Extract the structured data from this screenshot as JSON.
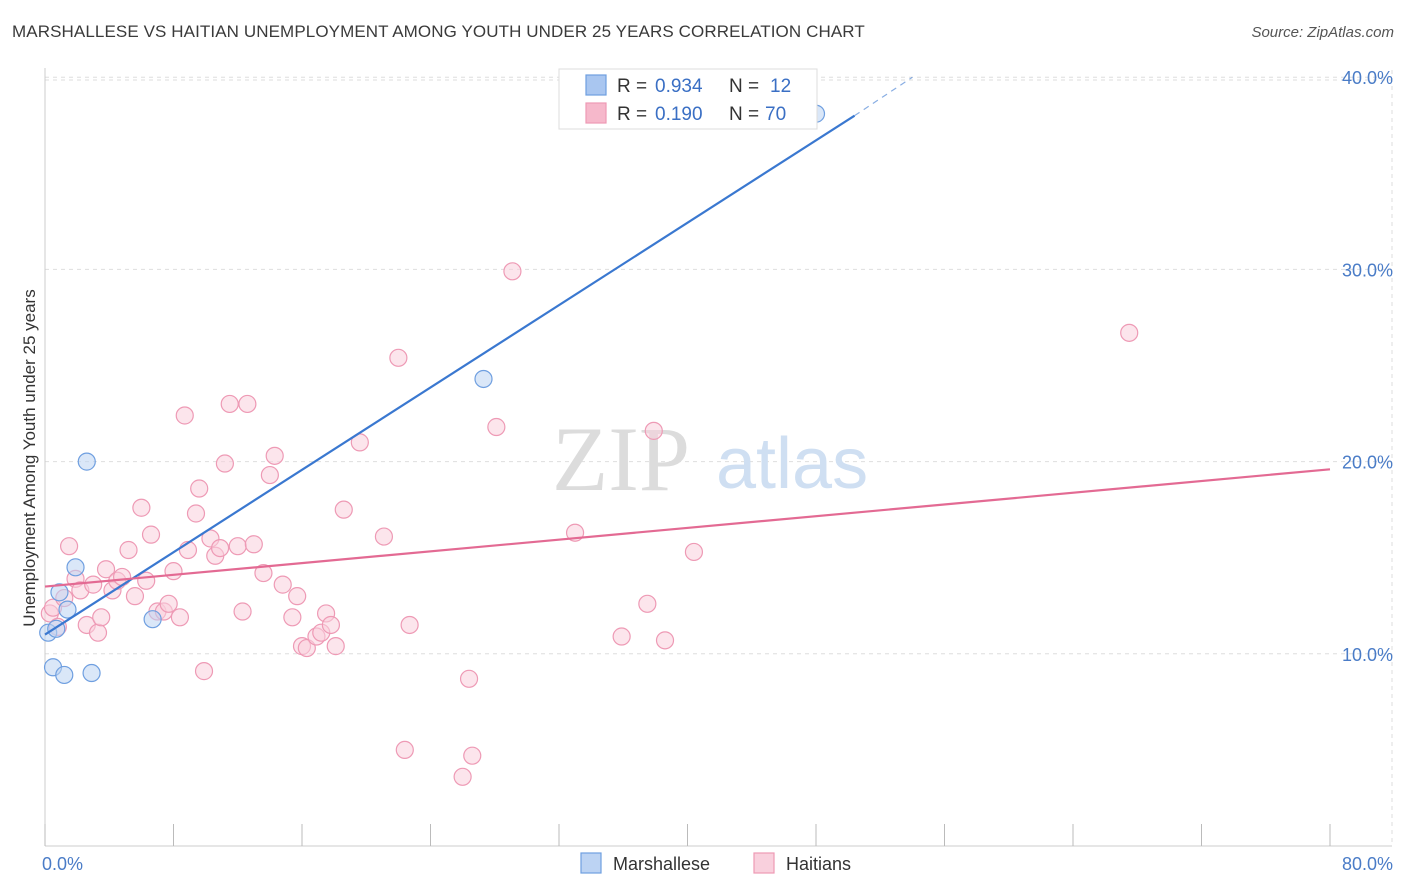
{
  "header": {
    "title": "MARSHALLESE VS HAITIAN UNEMPLOYMENT AMONG YOUTH UNDER 25 YEARS CORRELATION CHART",
    "source": "Source: ZipAtlas.com"
  },
  "watermark": {
    "zip": "ZIP",
    "atlas": "atlas"
  },
  "legend": {
    "rows": [
      {
        "r_label": "R =",
        "r_value": "0.934",
        "n_label": "N =",
        "n_value": "12",
        "color": "#a9c6f0"
      },
      {
        "r_label": "R =",
        "r_value": "0.190",
        "n_label": "N =",
        "n_value": "70",
        "color": "#f6b8cb"
      }
    ]
  },
  "chart_data": {
    "type": "scatter",
    "title": "MARSHALLESE VS HAITIAN UNEMPLOYMENT AMONG YOUTH UNDER 25 YEARS CORRELATION CHART",
    "xlabel": "",
    "ylabel": "Unemployment Among Youth under 25 years",
    "xlim": [
      0,
      80
    ],
    "ylim": [
      0,
      41
    ],
    "x_tick_labels": [
      {
        "value": 0,
        "label": "0.0%"
      },
      {
        "value": 80,
        "label": "80.0%"
      }
    ],
    "y_tick_labels": [
      {
        "value": 10,
        "label": "10.0%"
      },
      {
        "value": 20,
        "label": "20.0%"
      },
      {
        "value": 30,
        "label": "30.0%"
      },
      {
        "value": 40,
        "label": "40.0%"
      }
    ],
    "grid": true,
    "legend_position": "top-center",
    "series": [
      {
        "name": "Marshallese",
        "color": "#6f9fe0",
        "fill": "#bcd3f3",
        "line_color": "#3a78d0",
        "trend": {
          "x0": 0,
          "y0": 11.0,
          "x1": 50.4,
          "y1": 38.0,
          "dash_to_x": 54.0,
          "dash_to_y": 40.0
        },
        "points": [
          [
            0.2,
            11.1
          ],
          [
            0.7,
            11.3
          ],
          [
            0.5,
            9.3
          ],
          [
            1.2,
            8.9
          ],
          [
            0.9,
            13.2
          ],
          [
            1.4,
            12.3
          ],
          [
            1.9,
            14.5
          ],
          [
            2.6,
            20.0
          ],
          [
            2.9,
            9.0
          ],
          [
            6.7,
            11.8
          ],
          [
            27.3,
            24.3
          ],
          [
            48.0,
            38.1
          ]
        ]
      },
      {
        "name": "Haitians",
        "color": "#ee9ab5",
        "fill": "#f9d0dd",
        "line_color": "#e36a93",
        "trend": {
          "x0": 0,
          "y0": 13.5,
          "x1": 80,
          "y1": 19.6
        },
        "points": [
          [
            0.3,
            12.1
          ],
          [
            0.5,
            12.4
          ],
          [
            0.8,
            11.4
          ],
          [
            1.2,
            12.9
          ],
          [
            1.5,
            15.6
          ],
          [
            1.9,
            13.9
          ],
          [
            2.2,
            13.3
          ],
          [
            2.6,
            11.5
          ],
          [
            3.0,
            13.6
          ],
          [
            3.3,
            11.1
          ],
          [
            3.5,
            11.9
          ],
          [
            3.8,
            14.4
          ],
          [
            4.2,
            13.3
          ],
          [
            4.5,
            13.8
          ],
          [
            4.8,
            14.0
          ],
          [
            5.2,
            15.4
          ],
          [
            5.6,
            13.0
          ],
          [
            6.0,
            17.6
          ],
          [
            6.3,
            13.8
          ],
          [
            6.6,
            16.2
          ],
          [
            7.0,
            12.2
          ],
          [
            7.4,
            12.2
          ],
          [
            7.7,
            12.6
          ],
          [
            8.0,
            14.3
          ],
          [
            8.4,
            11.9
          ],
          [
            8.7,
            22.4
          ],
          [
            8.9,
            15.4
          ],
          [
            9.4,
            17.3
          ],
          [
            9.6,
            18.6
          ],
          [
            9.9,
            9.1
          ],
          [
            10.3,
            16.0
          ],
          [
            10.6,
            15.1
          ],
          [
            10.9,
            15.5
          ],
          [
            11.2,
            19.9
          ],
          [
            11.5,
            23.0
          ],
          [
            12.0,
            15.6
          ],
          [
            12.3,
            12.2
          ],
          [
            12.6,
            23.0
          ],
          [
            13.0,
            15.7
          ],
          [
            13.6,
            14.2
          ],
          [
            14.0,
            19.3
          ],
          [
            14.3,
            20.3
          ],
          [
            14.8,
            13.6
          ],
          [
            15.4,
            11.9
          ],
          [
            15.7,
            13.0
          ],
          [
            16.0,
            10.4
          ],
          [
            16.3,
            10.3
          ],
          [
            16.9,
            10.9
          ],
          [
            17.2,
            11.1
          ],
          [
            17.5,
            12.1
          ],
          [
            17.8,
            11.5
          ],
          [
            18.1,
            10.4
          ],
          [
            18.6,
            17.5
          ],
          [
            19.6,
            21.0
          ],
          [
            21.1,
            16.1
          ],
          [
            22.0,
            25.4
          ],
          [
            22.4,
            5.0
          ],
          [
            22.7,
            11.5
          ],
          [
            26.0,
            3.6
          ],
          [
            26.4,
            8.7
          ],
          [
            26.6,
            4.7
          ],
          [
            28.1,
            21.8
          ],
          [
            29.1,
            29.9
          ],
          [
            33.0,
            16.3
          ],
          [
            35.9,
            10.9
          ],
          [
            37.5,
            12.6
          ],
          [
            37.9,
            21.6
          ],
          [
            38.6,
            10.7
          ],
          [
            40.4,
            15.3
          ],
          [
            67.5,
            26.7
          ]
        ]
      }
    ]
  },
  "bottom_legend": {
    "items": [
      {
        "label": "Marshallese",
        "color": "#bcd3f3",
        "border": "#6f9fe0"
      },
      {
        "label": "Haitians",
        "color": "#f9d0dd",
        "border": "#ee9ab5"
      }
    ]
  }
}
